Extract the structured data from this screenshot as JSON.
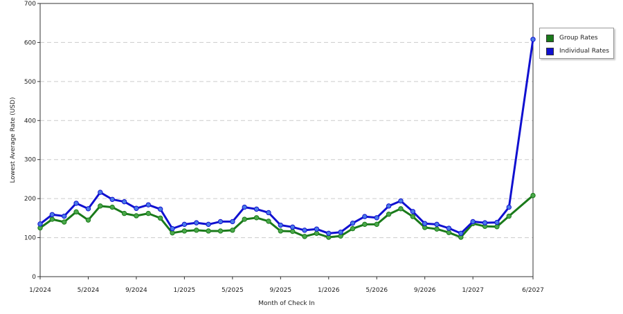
{
  "chart_data": {
    "type": "line",
    "title": "",
    "xlabel": "Month of Check In",
    "ylabel": "Lowest Average Rate (USD)",
    "ylim": [
      0,
      700
    ],
    "yticks": [
      "0",
      "100",
      "200",
      "300",
      "400",
      "500",
      "600",
      "700"
    ],
    "xtick_labels": [
      "1/2024",
      "5/2024",
      "9/2024",
      "1/2025",
      "5/2025",
      "9/2025",
      "1/2026",
      "5/2026",
      "9/2026",
      "1/2027",
      "6/2027"
    ],
    "grid": true,
    "legend_position": "top-right",
    "categories": [
      "1/2024",
      "2/2024",
      "3/2024",
      "4/2024",
      "5/2024",
      "6/2024",
      "7/2024",
      "8/2024",
      "9/2024",
      "10/2024",
      "11/2024",
      "12/2024",
      "1/2025",
      "2/2025",
      "3/2025",
      "4/2025",
      "5/2025",
      "6/2025",
      "7/2025",
      "8/2025",
      "9/2025",
      "10/2025",
      "11/2025",
      "12/2025",
      "1/2026",
      "2/2026",
      "3/2026",
      "4/2026",
      "5/2026",
      "6/2026",
      "7/2026",
      "8/2026",
      "9/2026",
      "10/2026",
      "11/2026",
      "12/2026",
      "1/2027",
      "2/2027",
      "3/2027",
      "4/2027",
      "6/2027"
    ],
    "series": [
      {
        "name": "Group Rates",
        "color": "#1a7a1a",
        "marker_color": "#4aa84a",
        "values": [
          125,
          147,
          140,
          166,
          145,
          181,
          178,
          162,
          156,
          162,
          150,
          112,
          117,
          119,
          117,
          117,
          119,
          147,
          151,
          142,
          117,
          116,
          103,
          111,
          101,
          104,
          123,
          134,
          134,
          160,
          174,
          154,
          126,
          122,
          113,
          101,
          136,
          129,
          128,
          155,
          208
        ]
      },
      {
        "name": "Individual Rates",
        "color": "#1010d0",
        "marker_color": "#4a7ae8",
        "values": [
          135,
          159,
          155,
          188,
          174,
          216,
          198,
          192,
          175,
          184,
          173,
          123,
          134,
          138,
          134,
          141,
          141,
          178,
          173,
          164,
          132,
          127,
          119,
          122,
          111,
          114,
          137,
          154,
          151,
          181,
          194,
          167,
          136,
          134,
          124,
          111,
          141,
          138,
          139,
          178,
          608
        ]
      }
    ]
  }
}
